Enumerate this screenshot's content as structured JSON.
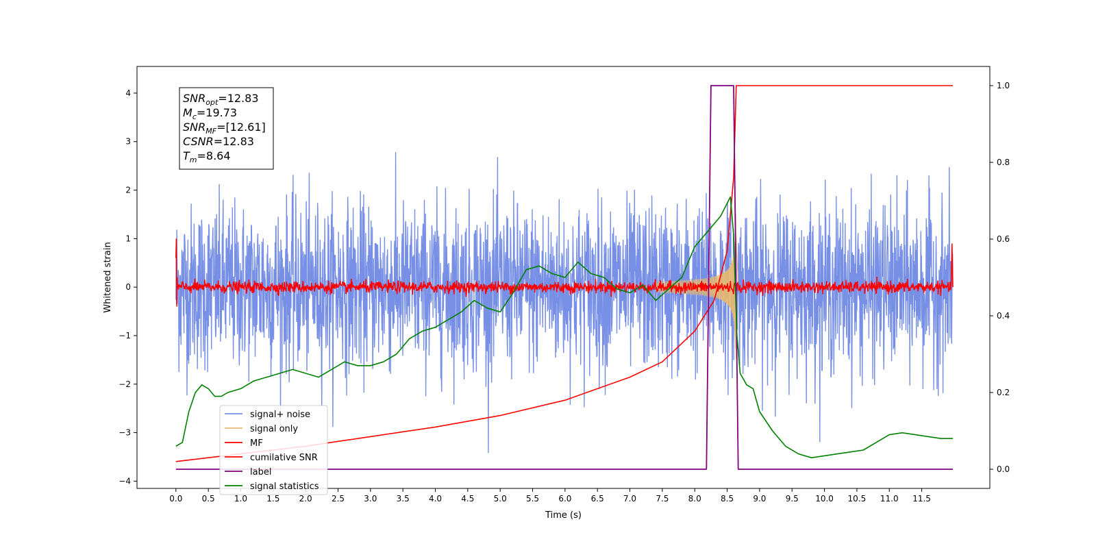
{
  "chart_data": {
    "type": "line",
    "xlabel": "Time (s)",
    "ylabel": "Whitened strain",
    "xlim": [
      -0.6,
      12.55
    ],
    "ylim": [
      -4.15,
      4.55
    ],
    "y2lim": [
      -0.05,
      1.05
    ],
    "grid": false,
    "x_ticks": [
      "0.0",
      "0.5",
      "1.0",
      "1.5",
      "2.0",
      "2.5",
      "3.0",
      "3.5",
      "4.0",
      "4.5",
      "5.0",
      "5.5",
      "6.0",
      "6.5",
      "7.0",
      "7.5",
      "8.0",
      "8.5",
      "9.0",
      "9.5",
      "10.0",
      "10.5",
      "11.0",
      "11.5"
    ],
    "y_ticks": [
      "4",
      "3",
      "2",
      "1",
      "0",
      "−1",
      "−2",
      "−3",
      "−4"
    ],
    "y2_ticks": [
      "1.0",
      "0.8",
      "0.6",
      "0.4",
      "0.2",
      "0.0"
    ],
    "legend_position": "lower-left",
    "annotation": {
      "lines": [
        {
          "var": "SNR",
          "sub": "opt",
          "value": "=12.83"
        },
        {
          "var": "M",
          "sub": "c",
          "value": "=19.73"
        },
        {
          "var": "SNR",
          "sub": "MF",
          "value": "=[12.61]"
        },
        {
          "var": "CSNR",
          "sub": "",
          "value": "=12.83"
        },
        {
          "var": "T",
          "sub": "m",
          "value": "=8.64"
        }
      ]
    },
    "series": [
      {
        "name": "signal+ noise",
        "color": "#7790e6",
        "axis": "left",
        "description_values": {
          "x_range": [
            0.0,
            11.98
          ],
          "noise_std": 0.85
        }
      },
      {
        "name": "signal only",
        "color": "#e8b86d",
        "axis": "left",
        "description_values": {
          "merger_time": 8.64,
          "peak_amplitude": 2.6
        }
      },
      {
        "name": "MF",
        "color": "#ff0000",
        "axis": "left",
        "description_values": {
          "x_range": [
            0.0,
            11.98
          ],
          "noise_std": 0.06
        }
      },
      {
        "name": "cumilative SNR",
        "color": "#ff0000",
        "axis": "right",
        "x": [
          0.0,
          1.0,
          2.0,
          3.0,
          4.0,
          5.0,
          6.0,
          7.0,
          7.5,
          8.0,
          8.3,
          8.5,
          8.6,
          8.64,
          8.66,
          11.98
        ],
        "values": [
          0.02,
          0.04,
          0.06,
          0.085,
          0.11,
          0.14,
          0.18,
          0.24,
          0.28,
          0.36,
          0.44,
          0.57,
          0.76,
          1.0,
          1.0,
          1.0
        ]
      },
      {
        "name": "label",
        "color": "#800080",
        "axis": "right",
        "x": [
          0.0,
          8.18,
          8.25,
          8.6,
          8.67,
          11.98
        ],
        "values": [
          0.0,
          0.0,
          1.0,
          1.0,
          0.0,
          0.0
        ]
      },
      {
        "name": "signal statistics",
        "color": "#008000",
        "axis": "right",
        "x": [
          0.0,
          0.1,
          0.2,
          0.3,
          0.4,
          0.5,
          0.6,
          0.7,
          0.8,
          1.0,
          1.2,
          1.4,
          1.6,
          1.8,
          2.0,
          2.2,
          2.4,
          2.6,
          2.8,
          3.0,
          3.2,
          3.4,
          3.5,
          3.6,
          3.8,
          4.0,
          4.2,
          4.4,
          4.6,
          4.8,
          5.0,
          5.2,
          5.4,
          5.6,
          5.8,
          6.0,
          6.2,
          6.4,
          6.6,
          6.8,
          7.0,
          7.2,
          7.4,
          7.6,
          7.8,
          8.0,
          8.2,
          8.4,
          8.55,
          8.6,
          8.65,
          8.7,
          8.8,
          8.9,
          9.0,
          9.2,
          9.4,
          9.6,
          9.8,
          10.0,
          10.2,
          10.4,
          10.6,
          10.8,
          11.0,
          11.2,
          11.4,
          11.6,
          11.8,
          11.98
        ],
        "values": [
          0.06,
          0.07,
          0.15,
          0.2,
          0.22,
          0.21,
          0.19,
          0.19,
          0.2,
          0.21,
          0.23,
          0.24,
          0.25,
          0.26,
          0.25,
          0.24,
          0.26,
          0.28,
          0.27,
          0.27,
          0.28,
          0.3,
          0.32,
          0.34,
          0.36,
          0.37,
          0.39,
          0.41,
          0.44,
          0.42,
          0.41,
          0.46,
          0.52,
          0.53,
          0.51,
          0.5,
          0.54,
          0.51,
          0.5,
          0.47,
          0.46,
          0.48,
          0.44,
          0.47,
          0.5,
          0.58,
          0.62,
          0.66,
          0.71,
          0.61,
          0.35,
          0.25,
          0.22,
          0.21,
          0.15,
          0.1,
          0.06,
          0.04,
          0.03,
          0.035,
          0.04,
          0.045,
          0.05,
          0.07,
          0.09,
          0.095,
          0.09,
          0.085,
          0.08,
          0.08
        ]
      }
    ]
  }
}
